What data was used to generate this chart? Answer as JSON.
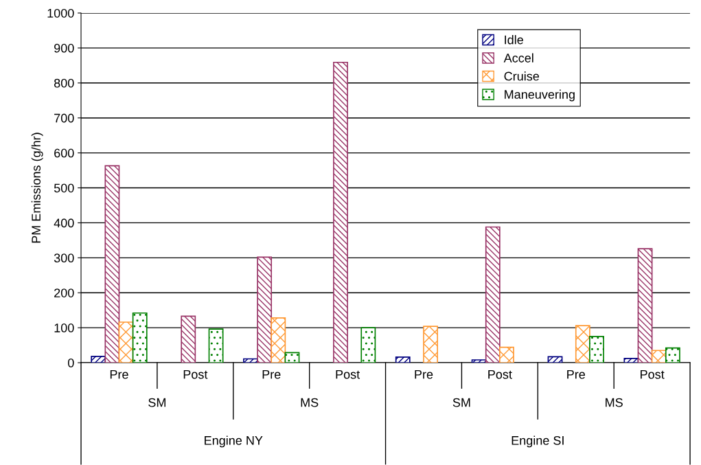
{
  "chart_data": {
    "type": "bar",
    "ylabel": "PM Emissions (g/hr)",
    "categories": [
      "Pre",
      "Post",
      "Pre",
      "Post",
      "Pre",
      "Post",
      "Pre",
      "Post"
    ],
    "series": [
      {
        "name": "Idle",
        "color": "#000080",
        "values": [
          18,
          null,
          11,
          null,
          16,
          8,
          17,
          12
        ]
      },
      {
        "name": "Accel",
        "color": "#993366",
        "values": [
          563,
          133,
          302,
          859,
          null,
          388,
          null,
          326
        ]
      },
      {
        "name": "Cruise",
        "color": "#ff9933",
        "values": [
          116,
          null,
          128,
          null,
          104,
          44,
          106,
          35
        ]
      },
      {
        "name": "Maneuvering",
        "color": "#008000",
        "values": [
          142,
          96,
          29,
          100,
          null,
          null,
          75,
          42
        ]
      }
    ],
    "annotations": [
      "SM",
      "MS",
      "SM",
      "MS",
      "Engine NY",
      "Engine SI"
    ],
    "ylim": [
      0,
      1000
    ],
    "yticks": [
      0,
      100,
      200,
      300,
      400,
      500,
      600,
      700,
      800,
      900,
      1000
    ],
    "grid": "y",
    "legend": "top right"
  }
}
